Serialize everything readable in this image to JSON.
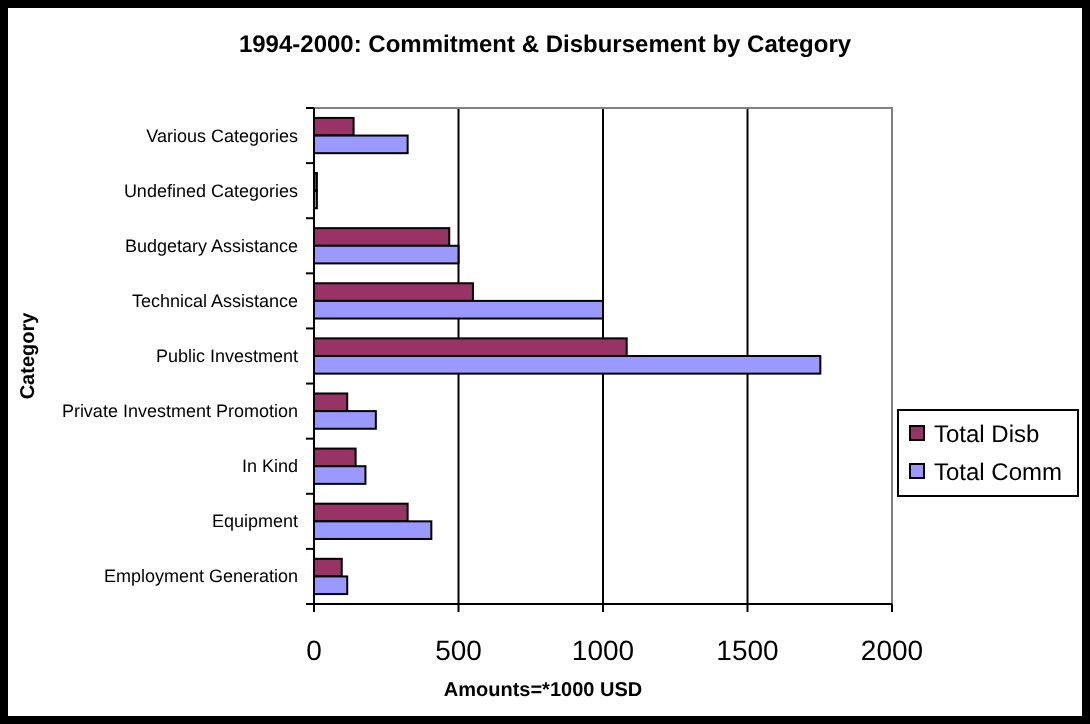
{
  "chart_data": {
    "type": "bar",
    "orientation": "horizontal",
    "title": "1994-2000: Commitment & Disbursement by Category",
    "xlabel": "Amounts=*1000 USD",
    "ylabel": "Category",
    "categories": [
      "Various Categories",
      "Undefined Categories",
      "Budgetary Assistance",
      "Technical Assistance",
      "Public Investment",
      "Private Investment Promotion",
      "In Kind",
      "Equipment",
      "Employment Generation"
    ],
    "series": [
      {
        "name": "Total Disb",
        "color": "#993366",
        "values": [
          137,
          10,
          468,
          550,
          1082,
          115,
          144,
          324,
          96
        ]
      },
      {
        "name": "Total Comm",
        "color": "#9999ff",
        "values": [
          324,
          10,
          500,
          1000,
          1752,
          214,
          178,
          406,
          115
        ]
      }
    ],
    "xlim": [
      0,
      2000
    ],
    "xticks": [
      0,
      500,
      1000,
      1500,
      2000
    ],
    "grid": "x",
    "legend": "right"
  }
}
